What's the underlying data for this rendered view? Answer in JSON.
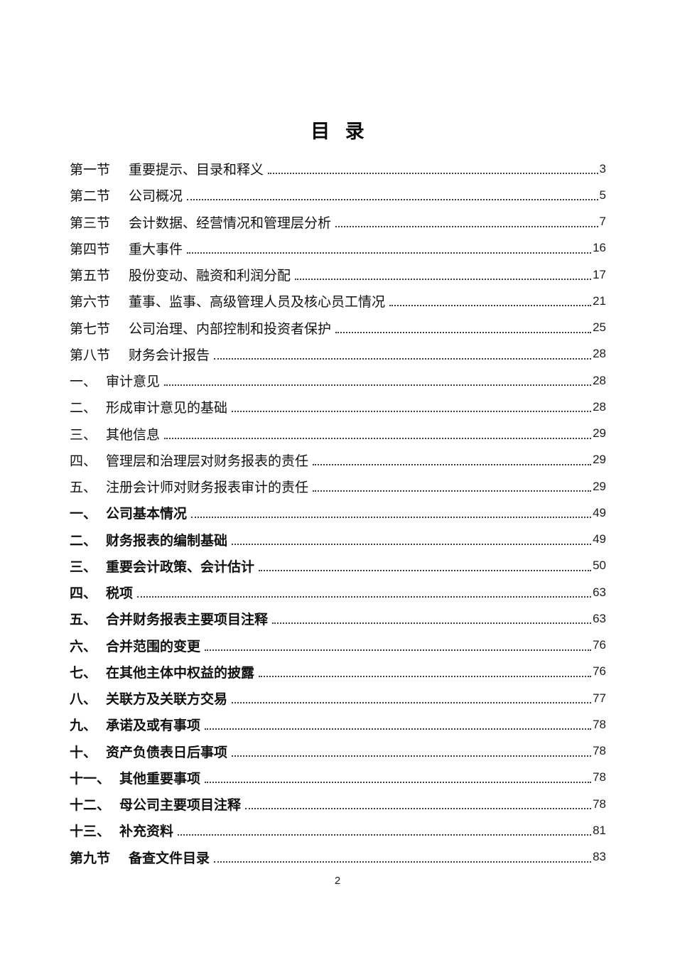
{
  "page": {
    "title": "目 录",
    "footer_page_number": "2"
  },
  "toc": {
    "entries": [
      {
        "label": "第一节",
        "title": "重要提示、目录和释义",
        "page": "3",
        "style": "section"
      },
      {
        "label": "第二节",
        "title": "公司概况",
        "page": "5",
        "style": "section"
      },
      {
        "label": "第三节",
        "title": "会计数据、经营情况和管理层分析",
        "page": "7",
        "style": "section"
      },
      {
        "label": "第四节",
        "title": "重大事件",
        "page": "16",
        "style": "section"
      },
      {
        "label": "第五节",
        "title": "股份变动、融资和利润分配",
        "page": "17",
        "style": "section"
      },
      {
        "label": "第六节",
        "title": "董事、监事、高级管理人员及核心员工情况",
        "page": "21",
        "style": "section"
      },
      {
        "label": "第七节",
        "title": "公司治理、内部控制和投资者保护",
        "page": "25",
        "style": "section"
      },
      {
        "label": "第八节",
        "title": "财务会计报告",
        "page": "28",
        "style": "section"
      },
      {
        "label": "一、",
        "title": "审计意见",
        "page": "28",
        "style": "sub-medium"
      },
      {
        "label": "二、",
        "title": "形成审计意见的基础",
        "page": "28",
        "style": "sub-medium"
      },
      {
        "label": "三、",
        "title": "其他信息",
        "page": "29",
        "style": "sub-medium"
      },
      {
        "label": "四、",
        "title": "管理层和治理层对财务报表的责任",
        "page": "29",
        "style": "sub-medium"
      },
      {
        "label": "五、",
        "title": "注册会计师对财务报表审计的责任",
        "page": "29",
        "style": "sub-medium"
      },
      {
        "label": "一、",
        "title": "公司基本情况",
        "page": "49",
        "style": "sub-bold"
      },
      {
        "label": "二、",
        "title": "财务报表的编制基础",
        "page": "49",
        "style": "sub-bold"
      },
      {
        "label": "三、",
        "title": "重要会计政策、会计估计",
        "page": "50",
        "style": "sub-bold"
      },
      {
        "label": "四、",
        "title": "税项",
        "page": "63",
        "style": "sub-bold"
      },
      {
        "label": "五、",
        "title": "合并财务报表主要项目注释",
        "page": "63",
        "style": "sub-bold"
      },
      {
        "label": "六、",
        "title": "合并范围的变更",
        "page": "76",
        "style": "sub-bold"
      },
      {
        "label": "七、",
        "title": "在其他主体中权益的披露",
        "page": "76",
        "style": "sub-bold"
      },
      {
        "label": "八、",
        "title": "关联方及关联方交易",
        "page": "77",
        "style": "sub-bold"
      },
      {
        "label": "九、",
        "title": "承诺及或有事项",
        "page": "78",
        "style": "sub-bold"
      },
      {
        "label": "十、",
        "title": "资产负债表日后事项",
        "page": "78",
        "style": "sub-bold"
      },
      {
        "label": "十一、",
        "title": "其他重要事项",
        "page": "78",
        "style": "sub-bold"
      },
      {
        "label": "十二、",
        "title": "母公司主要项目注释",
        "page": "78",
        "style": "sub-bold"
      },
      {
        "label": "十三、",
        "title": "补充资料",
        "page": "81",
        "style": "sub-bold"
      },
      {
        "label": "第九节",
        "title": "备查文件目录",
        "page": "83",
        "style": "section-bold"
      }
    ]
  }
}
